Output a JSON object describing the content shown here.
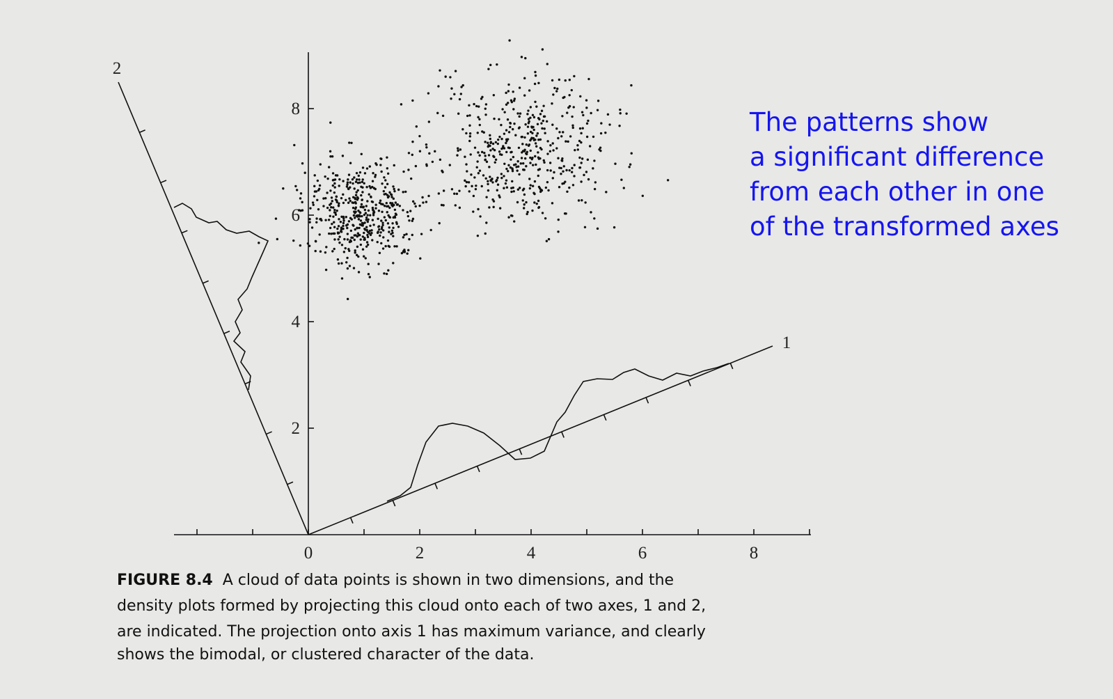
{
  "figure": {
    "axis_1_label": "1",
    "axis_2_label": "2",
    "x_tick_labels": [
      "0",
      "2",
      "4",
      "6",
      "8"
    ],
    "y_tick_labels": [
      "2",
      "4",
      "6",
      "8"
    ],
    "caption_label": "FIGURE 8.4",
    "caption_lines": [
      "A cloud of data points is shown in two dimensions, and the",
      "density plots formed by projecting this cloud onto each of two axes, 1 and 2,",
      "are indicated. The projection onto axis 1 has maximum variance, and clearly",
      "shows the bimodal, or clustered character of the data."
    ]
  },
  "annotation": {
    "lines": [
      "The patterns show",
      "a significant difference",
      "from each other in one",
      "of the transformed axes"
    ]
  }
}
